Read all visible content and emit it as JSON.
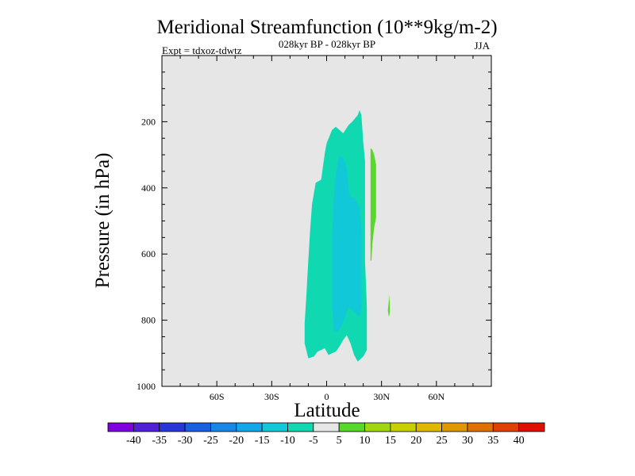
{
  "chart_data": {
    "type": "contour",
    "title": "Meridional Streamfunction (10**9kg/m-2)",
    "subtitle_center": "028kyr BP - 028kyr BP",
    "subtitle_left": "Expt = tdxoz-tdwtz",
    "subtitle_right": "JJA",
    "xlabel": "Latitude",
    "ylabel": "Pressure (in hPa)",
    "xlim": [
      -90,
      90
    ],
    "ylim": [
      1000,
      0
    ],
    "x_ticks": [
      {
        "value": -60,
        "label": "60S"
      },
      {
        "value": -30,
        "label": "30S"
      },
      {
        "value": 0,
        "label": "0"
      },
      {
        "value": 30,
        "label": "30N"
      },
      {
        "value": 60,
        "label": "60N"
      }
    ],
    "y_ticks": [
      {
        "value": 200,
        "label": "200"
      },
      {
        "value": 400,
        "label": "400"
      },
      {
        "value": 600,
        "label": "600"
      },
      {
        "value": 800,
        "label": "800"
      },
      {
        "value": 1000,
        "label": "1000"
      }
    ],
    "background_color": "#e6e6e6",
    "colorbar": {
      "labels": [
        "-40",
        "-35",
        "-30",
        "-25",
        "-20",
        "-15",
        "-10",
        "-5",
        "5",
        "10",
        "15",
        "20",
        "25",
        "30",
        "35",
        "40"
      ],
      "colors": [
        "#8000e0",
        "#5020d8",
        "#2838d8",
        "#1860e0",
        "#1888e8",
        "#10a8e8",
        "#10c8d8",
        "#10d8b0",
        "#e6e6e6",
        "#58d828",
        "#a0d810",
        "#c8d000",
        "#e0b800",
        "#e09800",
        "#e07000",
        "#e04000",
        "#e01000"
      ]
    },
    "regions": [
      {
        "name": "-5 to -10",
        "color": "#10d8b0",
        "points": [
          [
            -10,
            915
          ],
          [
            -12,
            870
          ],
          [
            -12,
            810
          ],
          [
            -11,
            720
          ],
          [
            -10,
            620
          ],
          [
            -9,
            525
          ],
          [
            -8,
            450
          ],
          [
            -6,
            385
          ],
          [
            -3,
            375
          ],
          [
            -1,
            295
          ],
          [
            0,
            265
          ],
          [
            3,
            225
          ],
          [
            5,
            215
          ],
          [
            7,
            225
          ],
          [
            9,
            235
          ],
          [
            12,
            210
          ],
          [
            14,
            200
          ],
          [
            17,
            180
          ],
          [
            18,
            165
          ],
          [
            19,
            180
          ],
          [
            20,
            260
          ],
          [
            21,
            320
          ],
          [
            21,
            480
          ],
          [
            21,
            620
          ],
          [
            22,
            760
          ],
          [
            22,
            890
          ],
          [
            20,
            910
          ],
          [
            17,
            925
          ],
          [
            15,
            905
          ],
          [
            13,
            870
          ],
          [
            11,
            845
          ],
          [
            9,
            860
          ],
          [
            7,
            880
          ],
          [
            5,
            895
          ],
          [
            3,
            900
          ],
          [
            1,
            905
          ],
          [
            -1,
            885
          ],
          [
            -3,
            890
          ],
          [
            -5,
            895
          ],
          [
            -7,
            910
          ]
        ]
      },
      {
        "name": "-10 to -15",
        "color": "#10c8d8",
        "points": [
          [
            4,
            830
          ],
          [
            3,
            760
          ],
          [
            3,
            660
          ],
          [
            3,
            545
          ],
          [
            4,
            430
          ],
          [
            5,
            360
          ],
          [
            7,
            300
          ],
          [
            9,
            310
          ],
          [
            11,
            340
          ],
          [
            12,
            410
          ],
          [
            13,
            430
          ],
          [
            15,
            430
          ],
          [
            18,
            460
          ],
          [
            19,
            530
          ],
          [
            19,
            640
          ],
          [
            19,
            760
          ],
          [
            18,
            790
          ],
          [
            16,
            780
          ],
          [
            14,
            770
          ],
          [
            12,
            760
          ],
          [
            10,
            790
          ],
          [
            8,
            820
          ],
          [
            6,
            835
          ]
        ]
      },
      {
        "name": "5 to 10",
        "color": "#58d828",
        "points": [
          [
            24,
            620
          ],
          [
            24,
            560
          ],
          [
            24,
            500
          ],
          [
            24,
            430
          ],
          [
            24,
            370
          ],
          [
            24,
            310
          ],
          [
            24,
            280
          ],
          [
            25,
            285
          ],
          [
            26,
            300
          ],
          [
            27,
            330
          ],
          [
            27,
            380
          ],
          [
            27,
            440
          ],
          [
            27,
            490
          ],
          [
            26,
            520
          ],
          [
            25,
            570
          ],
          [
            24.5,
            620
          ]
        ]
      },
      {
        "name": "5 to 10 small",
        "color": "#58d828",
        "points": [
          [
            34,
            790
          ],
          [
            33.5,
            770
          ],
          [
            34,
            740
          ],
          [
            34,
            720
          ],
          [
            34.5,
            745
          ],
          [
            34.5,
            780
          ]
        ]
      }
    ]
  }
}
